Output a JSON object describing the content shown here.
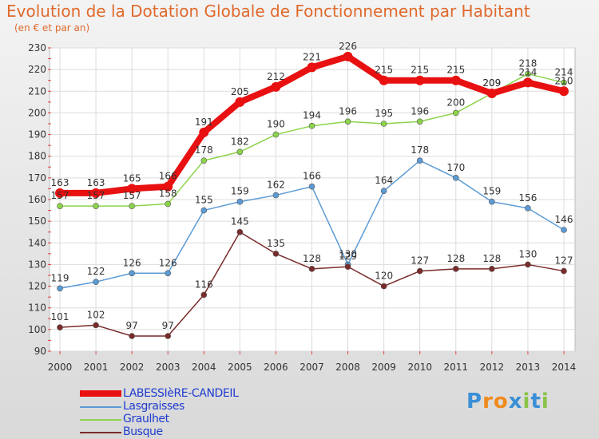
{
  "header": {
    "title": "Evolution de la Dotation Globale de Fonctionnement par Habitant",
    "subtitle": "(en € et par an)"
  },
  "logo": {
    "text": "Proxiti",
    "letters": [
      "P",
      "r",
      "o",
      "x",
      "i",
      "t",
      "i"
    ],
    "colors": [
      "#3a8fd6",
      "#f08a1c",
      "#f08a1c",
      "#3a8fd6",
      "#8bc34a",
      "#3a8fd6",
      "#8bc34a"
    ]
  },
  "chart_data": {
    "type": "line",
    "title": "Evolution de la Dotation Globale de Fonctionnement par Habitant",
    "subtitle": "(en € et par an)",
    "xlabel": "",
    "ylabel": "",
    "x": [
      "2000",
      "2001",
      "2002",
      "2003",
      "2004",
      "2005",
      "2006",
      "2007",
      "2008",
      "2009",
      "2010",
      "2011",
      "2012",
      "2013",
      "2014"
    ],
    "ylim": [
      90,
      230
    ],
    "yticks": [
      90,
      100,
      110,
      120,
      130,
      140,
      150,
      160,
      170,
      180,
      190,
      200,
      210,
      220,
      230
    ],
    "grid": true,
    "legend_position": "bottom-left",
    "series": [
      {
        "name": "LABESSIèRE-CANDEIL",
        "color": "#e81010",
        "width": 8,
        "values": [
          163,
          163,
          165,
          166,
          191,
          205,
          212,
          221,
          226,
          215,
          215,
          215,
          209,
          214,
          210
        ],
        "labels": [
          "163",
          "163",
          "165",
          "166",
          "191",
          "205",
          "212",
          "221",
          "226",
          "215",
          "215",
          "215",
          "209",
          "214",
          "210"
        ]
      },
      {
        "name": "Lasgraisses",
        "color": "#5b9bd5",
        "width": 1.5,
        "values": [
          119,
          122,
          126,
          126,
          155,
          159,
          162,
          166,
          130,
          164,
          178,
          170,
          159,
          156,
          146
        ],
        "labels": [
          "119",
          "122",
          "126",
          "126",
          "155",
          "159",
          "162",
          "166",
          "130",
          "164",
          "178",
          "170",
          "159",
          "156",
          "146"
        ]
      },
      {
        "name": "Graulhet",
        "color": "#8bd44a",
        "width": 1.5,
        "values": [
          157,
          157,
          157,
          158,
          178,
          182,
          190,
          194,
          196,
          195,
          196,
          200,
          209,
          218,
          214
        ],
        "labels": [
          "157",
          "157",
          "157",
          "158",
          "178",
          "182",
          "190",
          "194",
          "196",
          "195",
          "196",
          "200",
          "209",
          "218",
          "214"
        ]
      },
      {
        "name": "Busque",
        "color": "#7a2a2a",
        "width": 1.5,
        "values": [
          101,
          102,
          97,
          97,
          116,
          145,
          135,
          128,
          129,
          120,
          127,
          128,
          128,
          130,
          127
        ],
        "labels": [
          "101",
          "102",
          "97",
          "97",
          "116",
          "145",
          "135",
          "128",
          "129",
          "120",
          "127",
          "128",
          "128",
          "130",
          "127"
        ]
      }
    ]
  }
}
